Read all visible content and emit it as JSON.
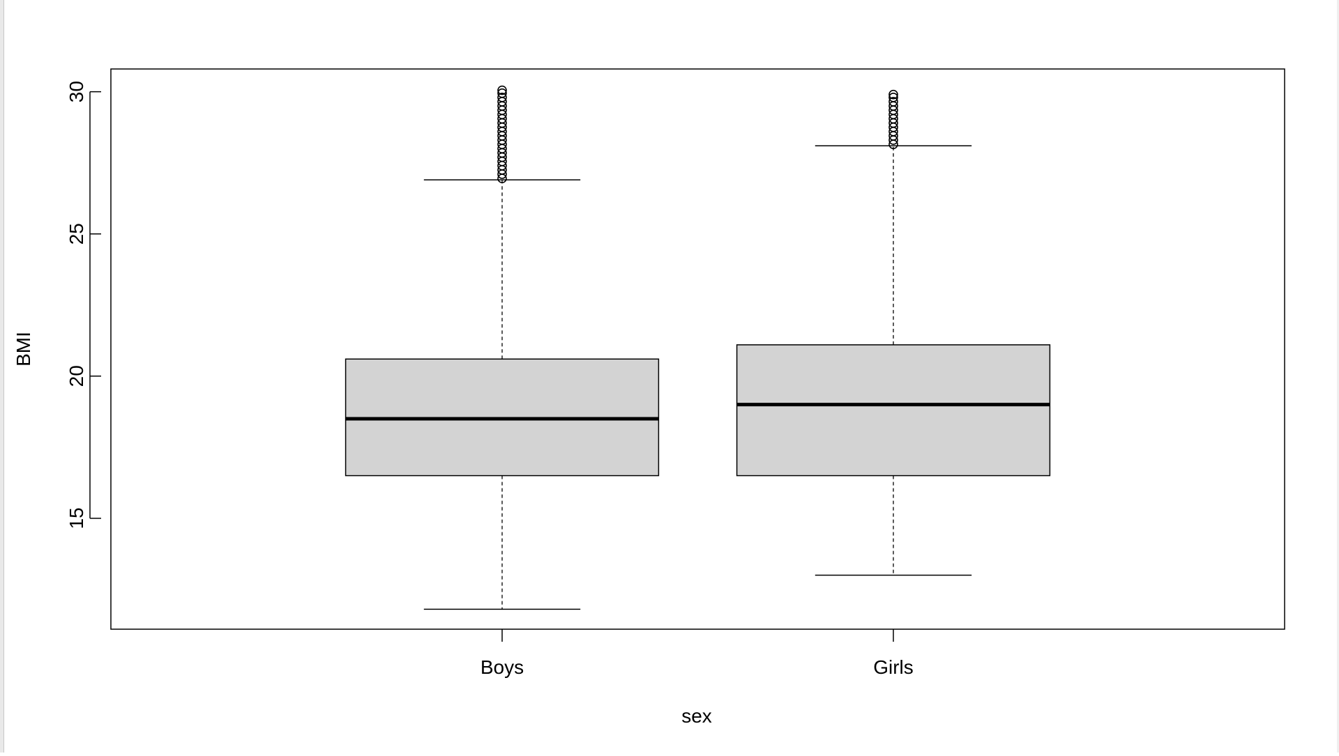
{
  "chart_data": {
    "type": "boxplot",
    "title": "",
    "xlabel": "sex",
    "ylabel": "BMI",
    "categories": [
      "Boys",
      "Girls"
    ],
    "ylim": [
      11.1,
      30.8
    ],
    "yticks": [
      15,
      20,
      25,
      30
    ],
    "box_fill": "#d3d3d3",
    "boxes": [
      {
        "name": "Boys",
        "whisker_low": 11.8,
        "q1": 16.5,
        "median": 18.5,
        "q3": 20.6,
        "whisker_high": 26.9,
        "outliers": [
          26.95,
          27.1,
          27.25,
          27.4,
          27.55,
          27.7,
          27.85,
          28.0,
          28.15,
          28.3,
          28.45,
          28.6,
          28.75,
          28.9,
          29.05,
          29.2,
          29.35,
          29.5,
          29.65,
          29.8,
          29.95,
          30.05
        ]
      },
      {
        "name": "Girls",
        "whisker_low": 13.0,
        "q1": 16.5,
        "median": 19.0,
        "q3": 21.1,
        "whisker_high": 28.1,
        "outliers": [
          28.15,
          28.3,
          28.45,
          28.6,
          28.75,
          28.9,
          29.05,
          29.2,
          29.35,
          29.5,
          29.65,
          29.8,
          29.9
        ]
      }
    ]
  }
}
